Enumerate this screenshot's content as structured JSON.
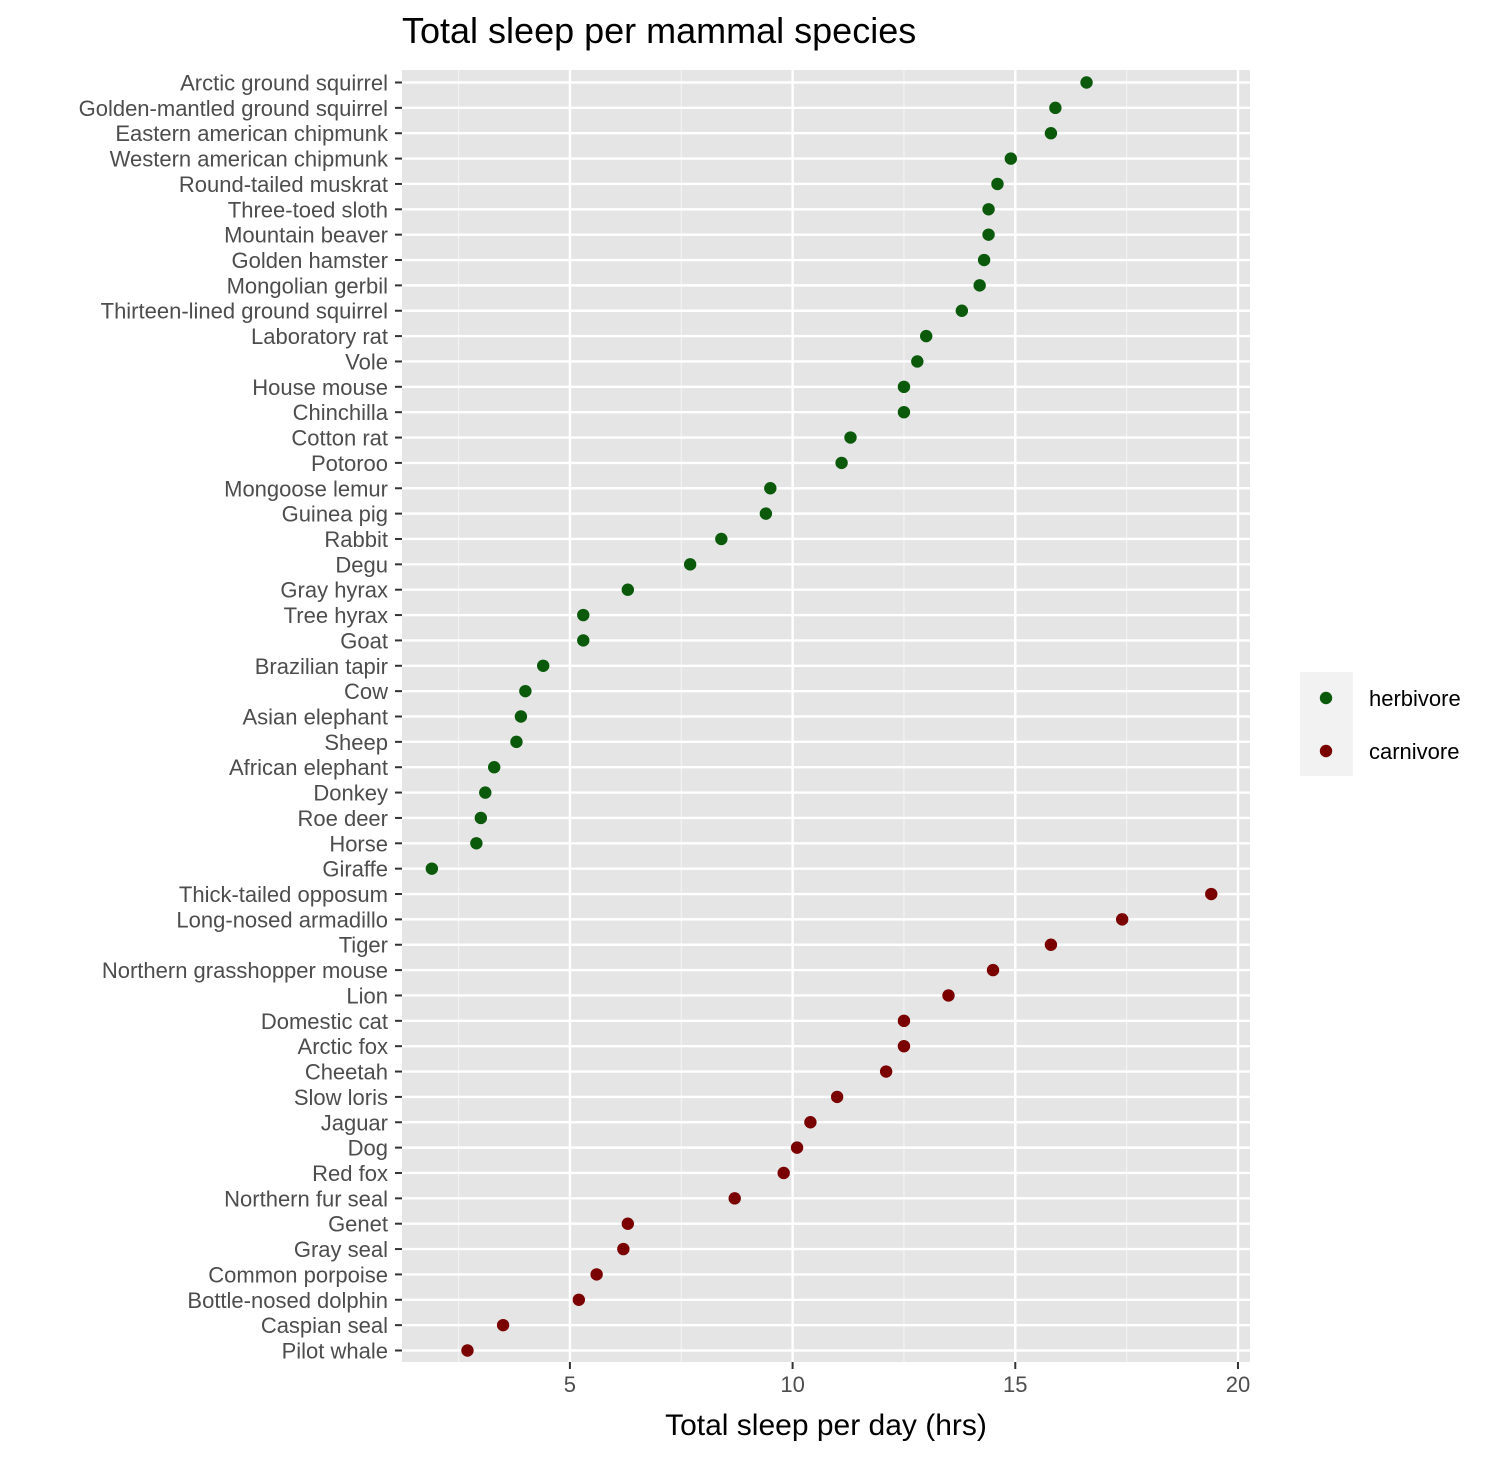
{
  "chart_data": {
    "type": "scatter",
    "title": "Total sleep per mammal species",
    "xlabel": "Total sleep per day (hrs)",
    "ylabel": "",
    "xlim": [
      1.23,
      20.27
    ],
    "xticks": [
      5,
      10,
      15,
      20
    ],
    "grid": true,
    "legend_position": "right",
    "series": [
      {
        "name": "herbivore",
        "color": "#0b5a0b",
        "points": [
          {
            "label": "Arctic ground squirrel",
            "x": 16.6
          },
          {
            "label": "Golden-mantled ground squirrel",
            "x": 15.9
          },
          {
            "label": "Eastern american chipmunk",
            "x": 15.8
          },
          {
            "label": "Western american chipmunk",
            "x": 14.9
          },
          {
            "label": "Round-tailed muskrat",
            "x": 14.6
          },
          {
            "label": "Three-toed sloth",
            "x": 14.4
          },
          {
            "label": "Mountain beaver",
            "x": 14.4
          },
          {
            "label": "Golden hamster",
            "x": 14.3
          },
          {
            "label": "Mongolian gerbil",
            "x": 14.2
          },
          {
            "label": "Thirteen-lined ground squirrel",
            "x": 13.8
          },
          {
            "label": "Laboratory rat",
            "x": 13.0
          },
          {
            "label": "Vole ",
            "x": 12.8
          },
          {
            "label": "House mouse",
            "x": 12.5
          },
          {
            "label": "Chinchilla",
            "x": 12.5
          },
          {
            "label": "Cotton rat",
            "x": 11.3
          },
          {
            "label": "Potoroo",
            "x": 11.1
          },
          {
            "label": "Mongoose lemur",
            "x": 9.5
          },
          {
            "label": "Guinea pig",
            "x": 9.4
          },
          {
            "label": "Rabbit",
            "x": 8.4
          },
          {
            "label": "Degu",
            "x": 7.7
          },
          {
            "label": "Gray hyrax",
            "x": 6.3
          },
          {
            "label": "Tree hyrax",
            "x": 5.3
          },
          {
            "label": "Goat",
            "x": 5.3
          },
          {
            "label": "Brazilian tapir",
            "x": 4.4
          },
          {
            "label": "Cow",
            "x": 4.0
          },
          {
            "label": "Asian elephant",
            "x": 3.9
          },
          {
            "label": "Sheep",
            "x": 3.8
          },
          {
            "label": "African elephant",
            "x": 3.3
          },
          {
            "label": "Donkey",
            "x": 3.1
          },
          {
            "label": "Roe deer",
            "x": 3.0
          },
          {
            "label": "Horse",
            "x": 2.9
          },
          {
            "label": "Giraffe",
            "x": 1.9
          }
        ]
      },
      {
        "name": "carnivore",
        "color": "#7a0000",
        "points": [
          {
            "label": "Thick-tailed opposum",
            "x": 19.4
          },
          {
            "label": "Long-nosed armadillo",
            "x": 17.4
          },
          {
            "label": "Tiger",
            "x": 15.8
          },
          {
            "label": "Northern grasshopper mouse",
            "x": 14.5
          },
          {
            "label": "Lion",
            "x": 13.5
          },
          {
            "label": "Domestic cat",
            "x": 12.5
          },
          {
            "label": "Arctic fox",
            "x": 12.5
          },
          {
            "label": "Cheetah",
            "x": 12.1
          },
          {
            "label": "Slow loris",
            "x": 11.0
          },
          {
            "label": "Jaguar",
            "x": 10.4
          },
          {
            "label": "Dog",
            "x": 10.1
          },
          {
            "label": "Red fox",
            "x": 9.8
          },
          {
            "label": "Northern fur seal",
            "x": 8.7
          },
          {
            "label": "Genet",
            "x": 6.3
          },
          {
            "label": "Gray seal",
            "x": 6.2
          },
          {
            "label": "Common porpoise",
            "x": 5.6
          },
          {
            "label": "Bottle-nosed dolphin",
            "x": 5.2
          },
          {
            "label": "Caspian seal",
            "x": 3.5
          },
          {
            "label": "Pilot whale",
            "x": 2.7
          }
        ]
      }
    ]
  }
}
